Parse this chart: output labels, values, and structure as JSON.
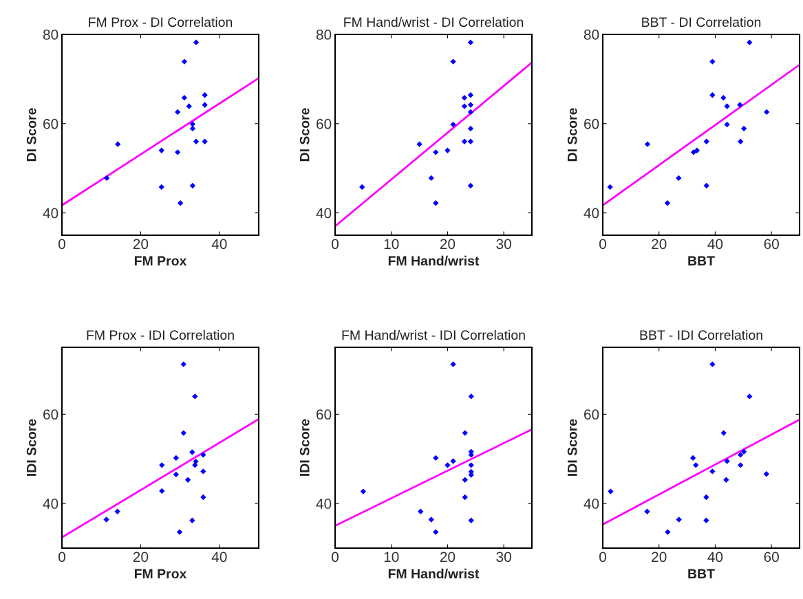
{
  "chart_data": [
    {
      "type": "scatter",
      "title": "FM Prox - DI Correlation",
      "xlabel": "FM Prox",
      "ylabel": "DI Score",
      "xlim": [
        0,
        50
      ],
      "ylim": [
        35,
        80
      ],
      "xticks": [
        0,
        20,
        40
      ],
      "yticks": [
        40,
        60,
        80
      ],
      "marker": "diamond",
      "series": [
        {
          "color": "#0000ff",
          "x": [
            34.1,
            31.1,
            31.1,
            36.3,
            32.3,
            36.3,
            29.4,
            33.2,
            33.2,
            34.1,
            36.3,
            14.2,
            25.3,
            29.4,
            11.4,
            25.3,
            33.2,
            30.1
          ],
          "values": [
            78.2,
            73.9,
            65.8,
            66.4,
            63.9,
            64.2,
            62.6,
            59.9,
            58.9,
            56.0,
            56.0,
            55.4,
            54.0,
            53.6,
            47.8,
            45.8,
            46.1,
            42.2
          ]
        },
        {
          "type": "line",
          "marker": "none",
          "color": "#ff00ff",
          "x": [
            0,
            50
          ],
          "values": [
            41.7,
            70.2
          ]
        }
      ]
    },
    {
      "type": "scatter",
      "title": "FM Hand/wrist - DI Correlation",
      "xlabel": "FM Hand/wrist",
      "ylabel": "DI Score",
      "xlim": [
        0,
        35
      ],
      "ylim": [
        35,
        80
      ],
      "xticks": [
        0,
        10,
        20,
        30
      ],
      "yticks": [
        40,
        60,
        80
      ],
      "marker": "diamond",
      "series": [
        {
          "color": "#0000ff",
          "x": [
            24.1,
            21.0,
            23.0,
            24.1,
            23.0,
            24.1,
            24.1,
            21.0,
            24.1,
            23.0,
            24.1,
            15.0,
            20.0,
            17.9,
            17.1,
            24.1,
            4.8,
            17.9
          ],
          "values": [
            78.2,
            73.9,
            65.8,
            66.4,
            63.9,
            64.2,
            62.6,
            59.8,
            58.9,
            56.0,
            56.0,
            55.4,
            54.0,
            53.6,
            47.8,
            46.1,
            45.8,
            42.2
          ]
        },
        {
          "type": "line",
          "marker": "none",
          "color": "#ff00ff",
          "x": [
            0,
            35
          ],
          "values": [
            37.0,
            73.7
          ]
        }
      ]
    },
    {
      "type": "scatter",
      "title": "BBT - DI Correlation",
      "xlabel": "BBT",
      "ylabel": "DI Score",
      "xlim": [
        0,
        70
      ],
      "ylim": [
        35,
        80
      ],
      "xticks": [
        0,
        20,
        40,
        60
      ],
      "yticks": [
        40,
        60,
        80
      ],
      "marker": "diamond",
      "series": [
        {
          "color": "#0000ff",
          "x": [
            52.2,
            39.0,
            39.0,
            42.9,
            44.2,
            48.8,
            58.3,
            44.2,
            50.2,
            36.9,
            49.0,
            15.9,
            33.5,
            32.3,
            27.0,
            36.9,
            2.6,
            23.0
          ],
          "values": [
            78.2,
            73.9,
            66.4,
            65.8,
            63.9,
            64.2,
            62.6,
            59.8,
            58.9,
            56.0,
            56.0,
            55.4,
            54.0,
            53.6,
            47.8,
            46.1,
            45.8,
            42.2
          ]
        },
        {
          "type": "line",
          "marker": "none",
          "color": "#ff00ff",
          "x": [
            0,
            70
          ],
          "values": [
            41.7,
            73.2
          ]
        }
      ]
    },
    {
      "type": "scatter",
      "title": "FM Prox - IDI Correlation",
      "xlabel": "FM Prox",
      "ylabel": "IDI Score",
      "xlim": [
        0,
        50
      ],
      "ylim": [
        30,
        75
      ],
      "xticks": [
        0,
        20,
        40
      ],
      "yticks": [
        40,
        60
      ],
      "marker": "diamond",
      "series": [
        {
          "color": "#0000ff",
          "x": [
            30.9,
            33.8,
            30.9,
            33.1,
            35.9,
            29.0,
            34.0,
            25.4,
            33.8,
            35.9,
            29.0,
            32.0,
            25.4,
            35.9,
            14.1,
            11.3,
            33.1,
            29.9
          ],
          "values": [
            71.2,
            64.0,
            55.8,
            51.5,
            50.9,
            50.2,
            49.4,
            48.6,
            48.6,
            47.2,
            46.5,
            45.3,
            42.8,
            41.4,
            38.2,
            36.4,
            36.2,
            33.6
          ]
        },
        {
          "type": "line",
          "marker": "none",
          "color": "#ff00ff",
          "x": [
            0,
            50
          ],
          "values": [
            32.4,
            58.9
          ]
        }
      ]
    },
    {
      "type": "scatter",
      "title": "FM Hand/wrist - IDI Correlation",
      "xlabel": "FM Hand/wrist",
      "ylabel": "IDI Score",
      "xlim": [
        0,
        35
      ],
      "ylim": [
        30,
        75
      ],
      "xticks": [
        0,
        10,
        20,
        30
      ],
      "yticks": [
        40,
        60
      ],
      "marker": "diamond",
      "series": [
        {
          "color": "#0000ff",
          "x": [
            21.0,
            24.2,
            23.1,
            24.2,
            24.2,
            17.9,
            21.0,
            20.0,
            24.2,
            24.2,
            24.2,
            23.1,
            5.0,
            23.1,
            15.2,
            17.1,
            24.2,
            17.9
          ],
          "values": [
            71.2,
            64.0,
            55.8,
            51.6,
            50.9,
            50.2,
            49.5,
            48.6,
            48.6,
            47.1,
            46.4,
            45.3,
            42.7,
            41.4,
            38.2,
            36.4,
            36.2,
            33.6
          ]
        },
        {
          "type": "line",
          "marker": "none",
          "color": "#ff00ff",
          "x": [
            0,
            35
          ],
          "values": [
            35.0,
            56.6
          ]
        }
      ]
    },
    {
      "type": "scatter",
      "title": "BBT - IDI Correlation",
      "xlabel": "BBT",
      "ylabel": "IDI Score",
      "xlim": [
        0,
        70
      ],
      "ylim": [
        30,
        75
      ],
      "xticks": [
        0,
        20,
        40,
        60
      ],
      "yticks": [
        40,
        60
      ],
      "marker": "diamond",
      "series": [
        {
          "color": "#0000ff",
          "x": [
            39.0,
            52.2,
            43.0,
            50.2,
            49.0,
            32.1,
            44.2,
            33.1,
            49.0,
            39.0,
            58.2,
            43.9,
            2.8,
            36.8,
            15.8,
            27.1,
            36.8,
            23.1
          ],
          "values": [
            71.2,
            64.0,
            55.8,
            51.6,
            50.9,
            50.2,
            49.5,
            48.6,
            48.6,
            47.2,
            46.6,
            45.3,
            42.7,
            41.4,
            38.2,
            36.4,
            36.2,
            33.6
          ]
        },
        {
          "type": "line",
          "marker": "none",
          "color": "#ff00ff",
          "x": [
            0,
            70
          ],
          "values": [
            35.3,
            58.8
          ]
        }
      ]
    }
  ]
}
